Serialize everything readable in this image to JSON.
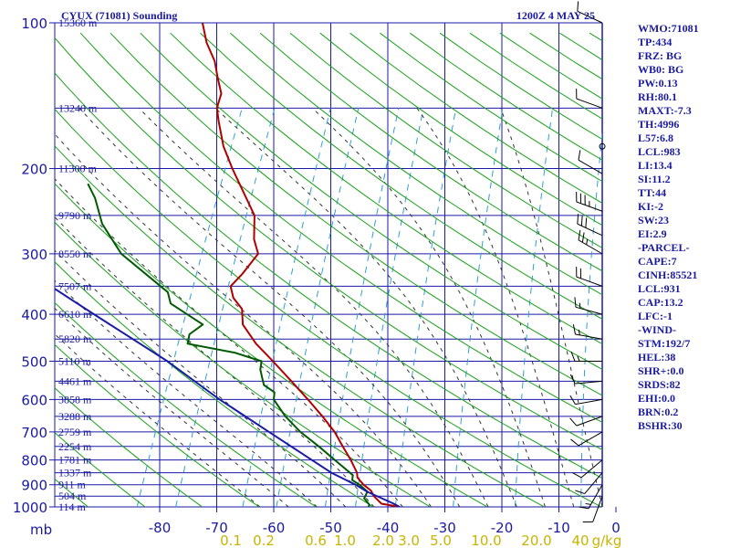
{
  "chart_data": {
    "type": "line",
    "title": "CYUX (71081) Sounding",
    "valid_time": "1200Z  4 MAY 25",
    "pressure_axis": {
      "unit_label": "mb",
      "range": [
        100,
        1000
      ],
      "scale": "log",
      "ticks": [
        "100",
        "200",
        "300",
        "400",
        "500",
        "600",
        "700",
        "800",
        "900",
        "1000"
      ]
    },
    "temperature_axis": {
      "range": [
        -80,
        0
      ],
      "ticks": [
        "-80",
        "-70",
        "-60",
        "-50",
        "-40",
        "-30",
        "-20",
        "-10",
        "0"
      ]
    },
    "height_labels": [
      {
        "p": 100,
        "label": "15360 m"
      },
      {
        "p": 150,
        "label": "13240 m"
      },
      {
        "p": 200,
        "label": "11300 m"
      },
      {
        "p": 250,
        "label": "9790 m"
      },
      {
        "p": 300,
        "label": "8550 m"
      },
      {
        "p": 350,
        "label": "7507 m"
      },
      {
        "p": 400,
        "label": "6610 m"
      },
      {
        "p": 450,
        "label": "5820 m"
      },
      {
        "p": 500,
        "label": "5110 m"
      },
      {
        "p": 550,
        "label": "4461 m"
      },
      {
        "p": 600,
        "label": "3858 m"
      },
      {
        "p": 650,
        "label": "3288 m"
      },
      {
        "p": 700,
        "label": "2759 m"
      },
      {
        "p": 750,
        "label": "2254 m"
      },
      {
        "p": 800,
        "label": "1781 m"
      },
      {
        "p": 850,
        "label": "1337 m"
      },
      {
        "p": 900,
        "label": "911 m"
      },
      {
        "p": 950,
        "label": "504 m"
      },
      {
        "p": 1000,
        "label": "114 m"
      }
    ],
    "mixing_ratio_labels": [
      "0.1",
      "0.2",
      "0.6",
      "1.0",
      "2.0",
      "3.0",
      "5.0",
      "10.0",
      "20.0",
      "40",
      "g/kg"
    ],
    "series": [
      {
        "name": "temperature",
        "color": "#b00000",
        "points": [
          {
            "p": 1000,
            "t": 4.5
          },
          {
            "p": 985,
            "t": 1.0
          },
          {
            "p": 950,
            "t": -1.0
          },
          {
            "p": 925,
            "t": -2.0
          },
          {
            "p": 900,
            "t": -3.8
          },
          {
            "p": 870,
            "t": -5.5
          },
          {
            "p": 850,
            "t": -6.0
          },
          {
            "p": 800,
            "t": -8.2
          },
          {
            "p": 750,
            "t": -10.8
          },
          {
            "p": 700,
            "t": -13.5
          },
          {
            "p": 650,
            "t": -17.0
          },
          {
            "p": 600,
            "t": -21.0
          },
          {
            "p": 550,
            "t": -25.5
          },
          {
            "p": 500,
            "t": -30.5
          },
          {
            "p": 460,
            "t": -35.0
          },
          {
            "p": 420,
            "t": -39.0
          },
          {
            "p": 390,
            "t": -40.5
          },
          {
            "p": 370,
            "t": -43.0
          },
          {
            "p": 350,
            "t": -44.5
          },
          {
            "p": 330,
            "t": -43.5
          },
          {
            "p": 300,
            "t": -42.5
          },
          {
            "p": 280,
            "t": -44.5
          },
          {
            "p": 250,
            "t": -46.5
          },
          {
            "p": 230,
            "t": -49.5
          },
          {
            "p": 200,
            "t": -54.5
          },
          {
            "p": 180,
            "t": -58.0
          },
          {
            "p": 160,
            "t": -61.0
          },
          {
            "p": 150,
            "t": -62.5
          },
          {
            "p": 140,
            "t": -63.0
          },
          {
            "p": 130,
            "t": -65.0
          },
          {
            "p": 120,
            "t": -67.0
          },
          {
            "p": 110,
            "t": -70.0
          },
          {
            "p": 100,
            "t": -72.5
          }
        ]
      },
      {
        "name": "dewpoint",
        "color": "#005a00",
        "points": [
          {
            "p": 1000,
            "t": -1.0
          },
          {
            "p": 990,
            "t": -1.0
          },
          {
            "p": 960,
            "t": -2.5
          },
          {
            "p": 930,
            "t": -2.5
          },
          {
            "p": 900,
            "t": -4.5
          },
          {
            "p": 880,
            "t": -6.2
          },
          {
            "p": 860,
            "t": -6.5
          },
          {
            "p": 800,
            "t": -11.0
          },
          {
            "p": 750,
            "t": -15.0
          },
          {
            "p": 700,
            "t": -19.5
          },
          {
            "p": 650,
            "t": -23.5
          },
          {
            "p": 600,
            "t": -27.0
          },
          {
            "p": 580,
            "t": -27.5
          },
          {
            "p": 560,
            "t": -30.0
          },
          {
            "p": 540,
            "t": -31.0
          },
          {
            "p": 520,
            "t": -32.0
          },
          {
            "p": 500,
            "t": -32.5
          },
          {
            "p": 480,
            "t": -38.0
          },
          {
            "p": 460,
            "t": -47.0
          },
          {
            "p": 440,
            "t": -47.5
          },
          {
            "p": 420,
            "t": -46.0
          },
          {
            "p": 380,
            "t": -53.5
          },
          {
            "p": 360,
            "t": -55.0
          },
          {
            "p": 330,
            "t": -60.5
          },
          {
            "p": 300,
            "t": -66.5
          },
          {
            "p": 260,
            "t": -72.5
          },
          {
            "p": 230,
            "t": -76.0
          },
          {
            "p": 215,
            "t": -78.5
          }
        ]
      },
      {
        "name": "parcel",
        "color": "#1a1aa8",
        "points": [
          {
            "p": 1000,
            "t": 4.5
          },
          {
            "p": 983,
            "t": 3.0
          },
          {
            "p": 931,
            "t": -2.5
          },
          {
            "p": 900,
            "t": -5.2
          },
          {
            "p": 850,
            "t": -10.5
          },
          {
            "p": 700,
            "t": -25.0
          },
          {
            "p": 600,
            "t": -36.5
          },
          {
            "p": 500,
            "t": -49.0
          },
          {
            "p": 400,
            "t": -66.0
          },
          {
            "p": 350,
            "t": -76.0
          }
        ]
      }
    ],
    "wind_barbs": [
      {
        "p": 100,
        "dir": 295,
        "spd": 10
      },
      {
        "p": 150,
        "dir": 290,
        "spd": 10
      },
      {
        "p": 180,
        "dir": 0,
        "spd": 0
      },
      {
        "p": 205,
        "dir": 300,
        "spd": 10
      },
      {
        "p": 245,
        "dir": 290,
        "spd": 35
      },
      {
        "p": 275,
        "dir": 295,
        "spd": 30
      },
      {
        "p": 300,
        "dir": 300,
        "spd": 25
      },
      {
        "p": 350,
        "dir": 290,
        "spd": 20
      },
      {
        "p": 400,
        "dir": 285,
        "spd": 15
      },
      {
        "p": 450,
        "dir": 280,
        "spd": 15
      },
      {
        "p": 500,
        "dir": 270,
        "spd": 15
      },
      {
        "p": 550,
        "dir": 265,
        "spd": 10
      },
      {
        "p": 600,
        "dir": 260,
        "spd": 10
      },
      {
        "p": 650,
        "dir": 250,
        "spd": 10
      },
      {
        "p": 700,
        "dir": 240,
        "spd": 10
      },
      {
        "p": 800,
        "dir": 230,
        "spd": 10
      },
      {
        "p": 850,
        "dir": 220,
        "spd": 10
      },
      {
        "p": 900,
        "dir": 210,
        "spd": 15
      },
      {
        "p": 950,
        "dir": 200,
        "spd": 10
      }
    ],
    "indices": [
      "WMO:71081",
      "TP:434",
      "FRZ: BG",
      "WB0: BG",
      "PW:0.13",
      "RH:80.1",
      "MAXT:-7.3",
      "TH:4996",
      "L57:6.8",
      "LCL:983",
      "LI:13.4",
      "SI:11.2",
      "TT:44",
      "KI:-2",
      "SW:23",
      "EI:2.9",
      "-PARCEL-",
      "CAPE:7",
      "CINH:85521",
      "LCL:931",
      "CAP:13.2",
      "LFC:-1",
      "-WIND-",
      "STM:192/7",
      "HEL:38",
      "SHR+:0.0",
      "SRDS:82",
      "EHI:0.0",
      "BRN:0.2",
      "BSHR:30"
    ],
    "colors": {
      "grid": "#1a1aa8",
      "dry_adiabat": "#18a018",
      "moist_adiabat": "#333333",
      "mixing_ratio": "#2ea0d0",
      "mixing_label": "#c8b400",
      "text": "#1a1aa0"
    }
  }
}
